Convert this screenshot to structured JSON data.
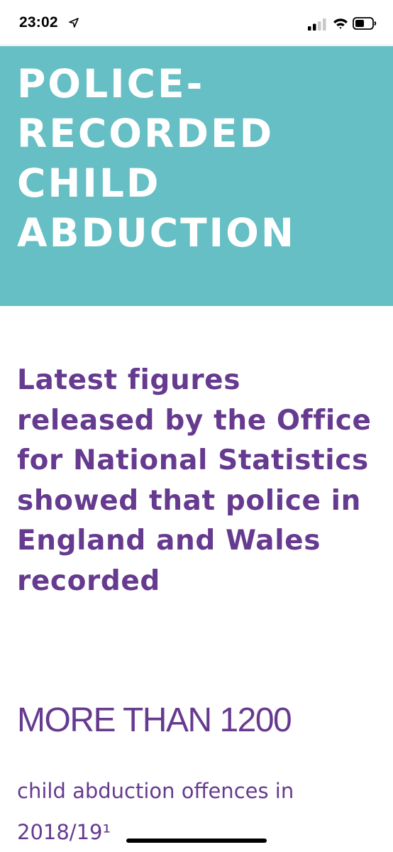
{
  "status_bar": {
    "time": "23:02",
    "icons": [
      "location-arrow-icon",
      "cellular-signal-icon",
      "wifi-icon",
      "battery-icon"
    ]
  },
  "hero": {
    "title": "POLICE-\nRECORDED\nCHILD\nABDUCTION",
    "background_color": "#65bfc4",
    "text_color": "#ffffff"
  },
  "article": {
    "lead_text": "Latest figures released by the Office for National Statistics showed that police in England and Wales recorded",
    "stat_value": "MORE THAN 1200",
    "stat_caption": "child abduction offences in 2018/19¹",
    "accent_color": "#663a8f"
  }
}
